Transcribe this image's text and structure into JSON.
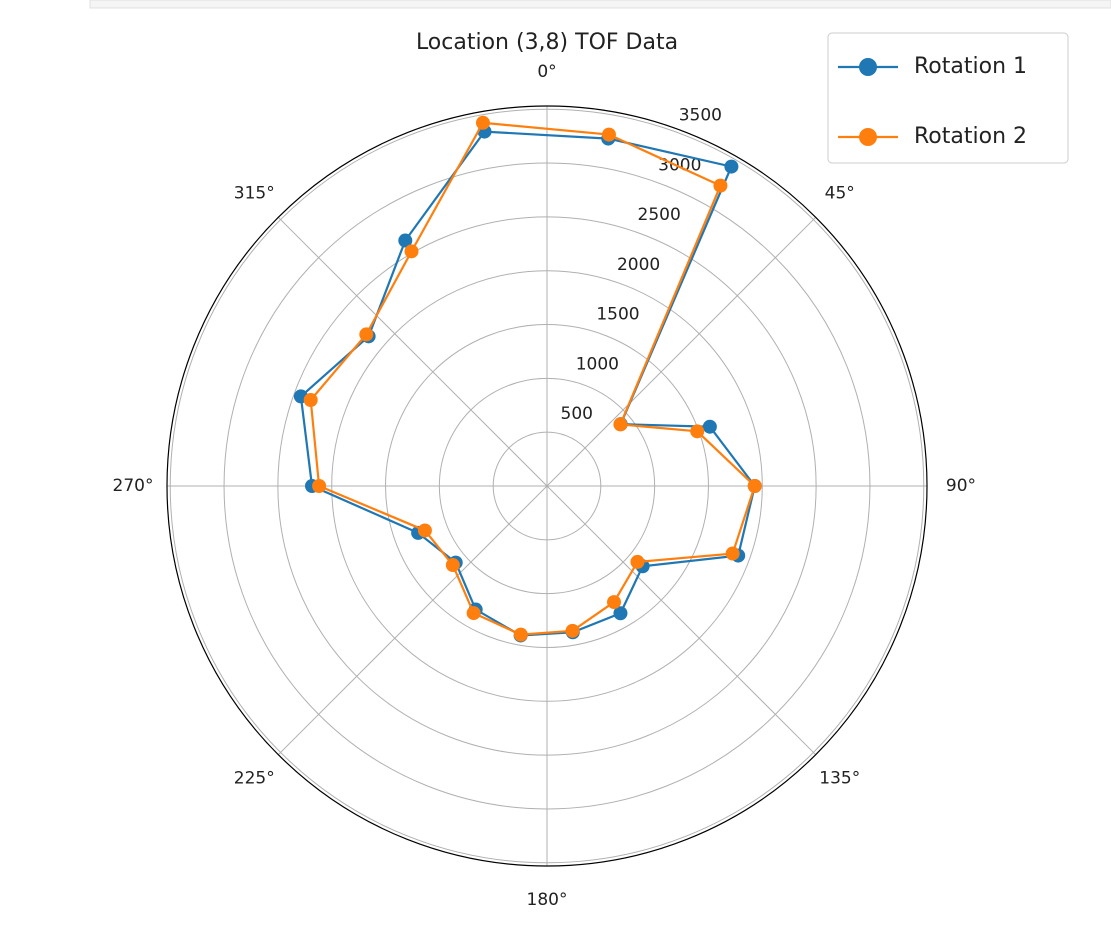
{
  "chart_data": {
    "type": "polar",
    "title": "Location (3,8) TOF Data",
    "theta": [
      10,
      30,
      50,
      70,
      90,
      110,
      130,
      150,
      170,
      190,
      210,
      230,
      250,
      270,
      290,
      310,
      330,
      350
    ],
    "series": [
      {
        "name": "Rotation 1",
        "color": "#1f77b4",
        "values": [
          3277,
          3426,
          894,
          1610,
          1930,
          1890,
          1160,
          1365,
          1380,
          1410,
          1325,
          1107,
          1274,
          2183,
          2433,
          2163,
          2633,
          3343
        ]
      },
      {
        "name": "Rotation 2",
        "color": "#ff7f0e",
        "values": [
          3315,
          3222,
          890,
          1485,
          1930,
          1835,
          1097,
          1245,
          1366,
          1402,
          1363,
          1142,
          1207,
          2117,
          2336,
          2191,
          2517,
          3426
        ]
      }
    ],
    "rlim": [
      0,
      3530
    ],
    "rticks": [
      500,
      1000,
      1500,
      2000,
      2500,
      3000,
      3500
    ],
    "thetaticks": [
      {
        "value": 0,
        "label": "0°"
      },
      {
        "value": 45,
        "label": "45°"
      },
      {
        "value": 90,
        "label": "90°"
      },
      {
        "value": 135,
        "label": "135°"
      },
      {
        "value": 180,
        "label": "180°"
      },
      {
        "value": 225,
        "label": "225°"
      },
      {
        "value": 270,
        "label": "270°"
      },
      {
        "value": 315,
        "label": "315°"
      }
    ],
    "grid": true,
    "legend": "upper right"
  }
}
